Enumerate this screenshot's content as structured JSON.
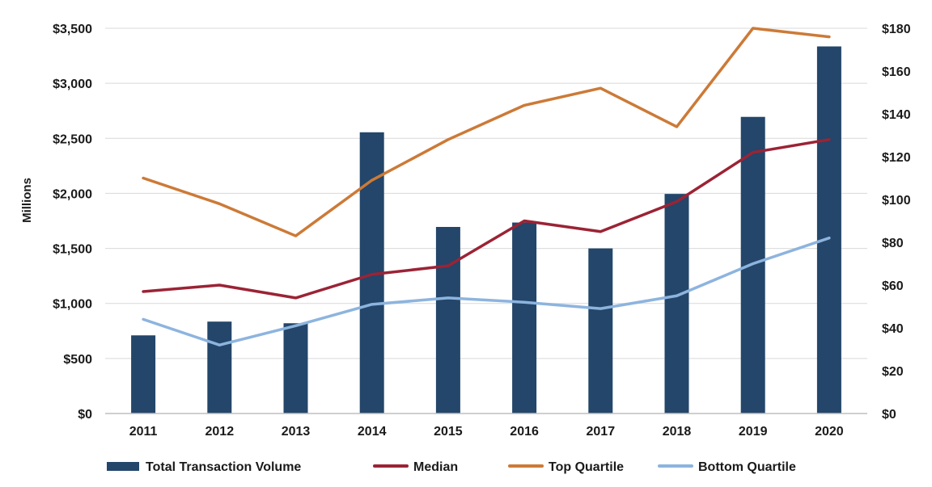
{
  "chart_data": {
    "type": "bar",
    "categories": [
      "2011",
      "2012",
      "2013",
      "2014",
      "2015",
      "2016",
      "2017",
      "2018",
      "2019",
      "2020"
    ],
    "ylabel": "Millions",
    "y_left": {
      "range": [
        0,
        3500
      ],
      "ticks": [
        0,
        500,
        1000,
        1500,
        2000,
        2500,
        3000,
        3500
      ],
      "tick_labels": [
        "$0",
        "$500",
        "$1,000",
        "$1,500",
        "$2,000",
        "$2,500",
        "$3,000",
        "$3,500"
      ]
    },
    "y_right": {
      "range": [
        0,
        180
      ],
      "ticks": [
        0,
        20,
        40,
        60,
        80,
        100,
        120,
        140,
        160,
        180
      ],
      "tick_labels": [
        "$0",
        "$20",
        "$40",
        "$60",
        "$80",
        "$100",
        "$120",
        "$140",
        "$160",
        "$180"
      ]
    },
    "grid": true,
    "legend_position": "bottom",
    "bar_series": {
      "name": "Total Transaction Volume",
      "axis": "left",
      "color": "#23466a",
      "values": [
        710,
        835,
        820,
        2555,
        1695,
        1735,
        1500,
        1995,
        2695,
        3335
      ]
    },
    "line_series": [
      {
        "name": "Median",
        "axis": "right",
        "color": "#9b2335",
        "values": [
          57,
          60,
          54,
          65,
          69,
          90,
          85,
          99,
          122,
          128
        ]
      },
      {
        "name": "Top Quartile",
        "axis": "right",
        "color": "#cc7a37",
        "values": [
          110,
          98,
          83,
          109,
          128,
          144,
          152,
          134,
          180,
          176
        ]
      },
      {
        "name": "Bottom Quartile",
        "axis": "right",
        "color": "#8db4de",
        "values": [
          44,
          32,
          41,
          51,
          54,
          52,
          49,
          55,
          70,
          82
        ]
      }
    ]
  }
}
